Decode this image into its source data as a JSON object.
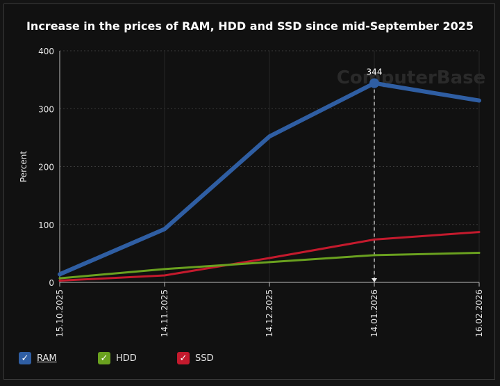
{
  "chart_data": {
    "type": "line",
    "title": "Increase in the prices of RAM, HDD and SSD since mid-September 2025",
    "ylabel": "Percent",
    "xlabel": "",
    "ylim": [
      0,
      400
    ],
    "yticks": [
      "0",
      "100",
      "200",
      "300",
      "400"
    ],
    "categories": [
      "15.10.2025",
      "14.11.2025",
      "14.12.2025",
      "14.01.2026",
      "16.02.2026"
    ],
    "series": [
      {
        "name": "RAM",
        "color": "#2f5ea3",
        "values": [
          14,
          92,
          252,
          344,
          314
        ]
      },
      {
        "name": "HDD",
        "color": "#6aa11f",
        "values": [
          7,
          23,
          35,
          47,
          51
        ]
      },
      {
        "name": "SSD",
        "color": "#c41a2d",
        "values": [
          3,
          12,
          42,
          74,
          87
        ]
      }
    ],
    "highlight": {
      "category": "14.01.2026",
      "series": "RAM",
      "label": "344"
    },
    "grid": true,
    "legend_position": "bottom-left"
  },
  "watermark": "ComputerBase"
}
